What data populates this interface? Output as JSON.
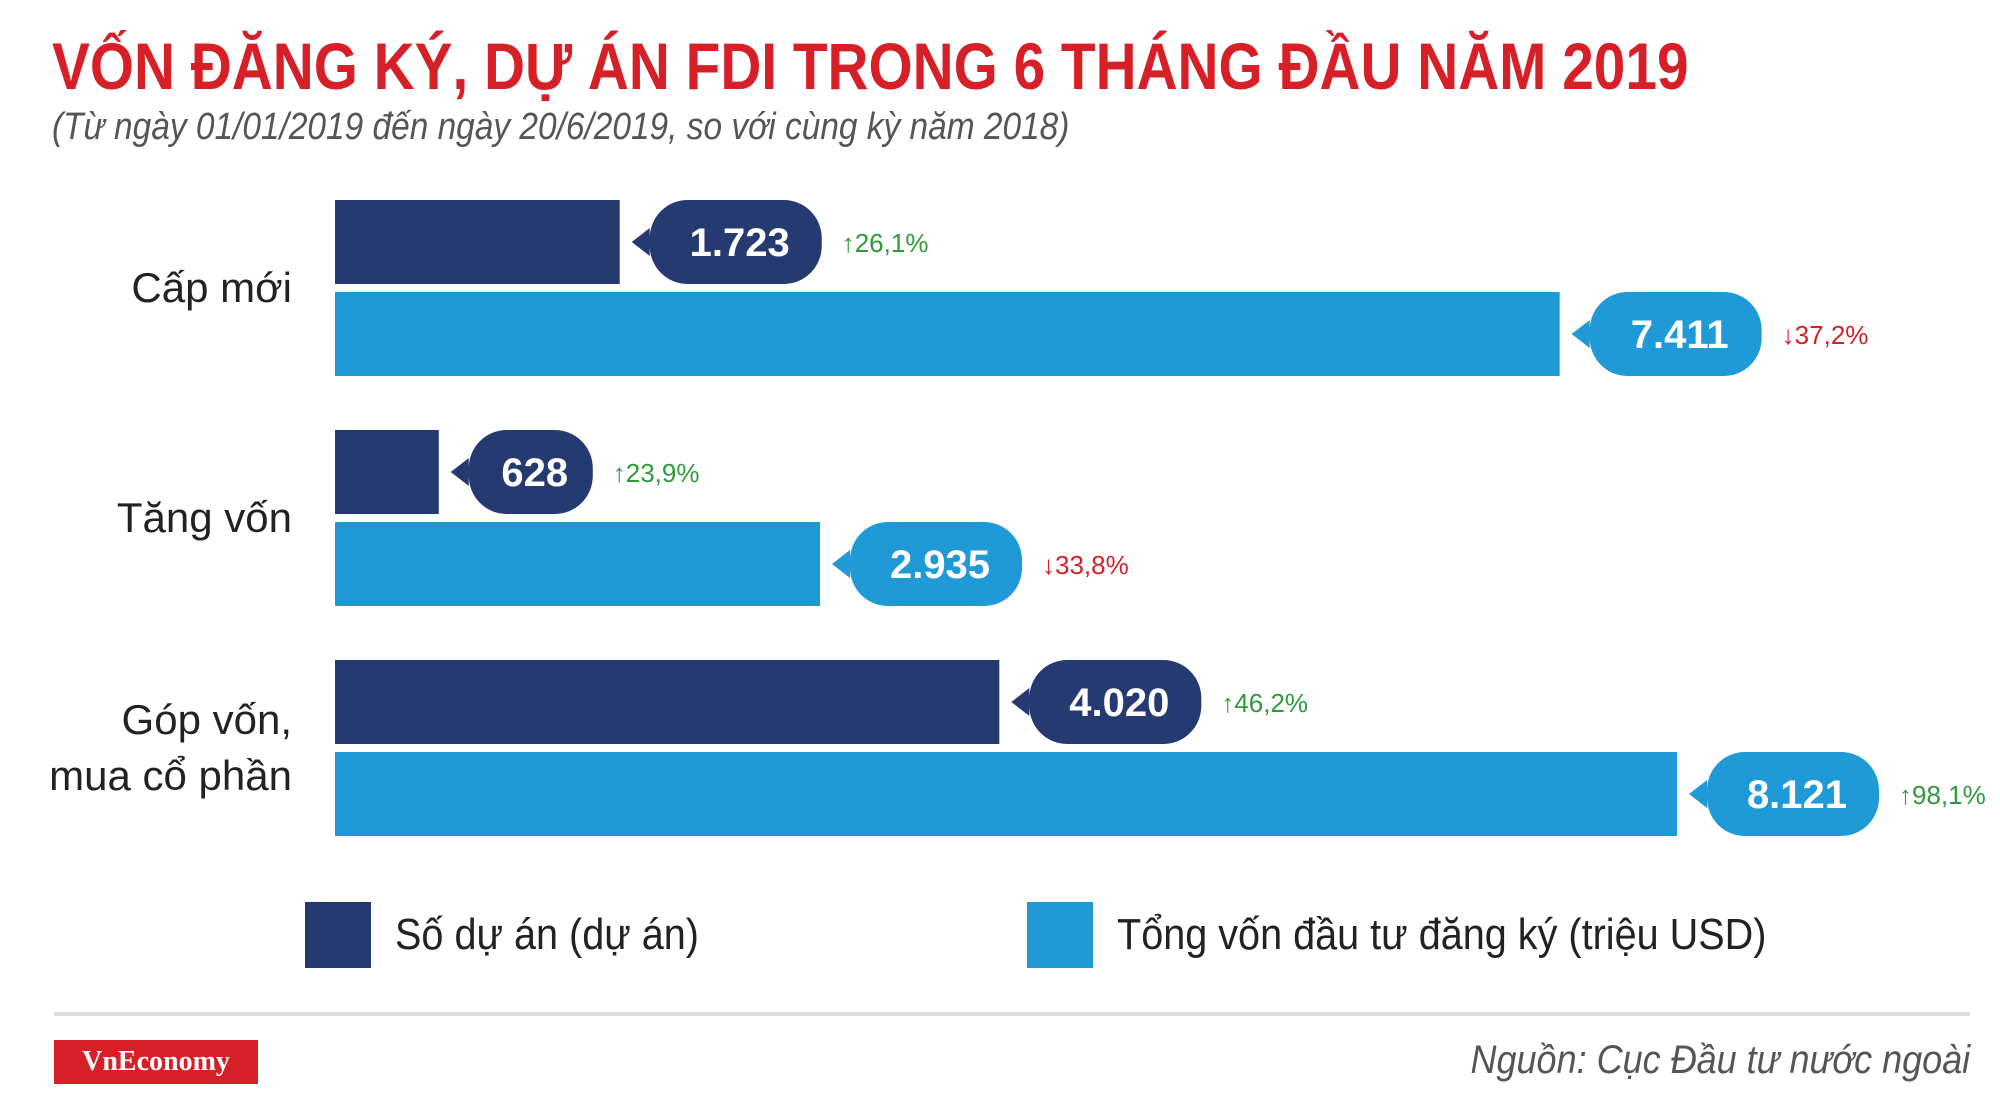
{
  "title": "VỐN ĐĂNG KÝ, DỰ ÁN FDI TRONG 6 THÁNG ĐẦU NĂM 2019",
  "subtitle": "(Từ ngày 01/01/2019 đến ngày 20/6/2019, so với cùng kỳ năm 2018)",
  "colors": {
    "title": "#d71f27",
    "projects": "#253a70",
    "capital": "#1f9ad6",
    "up": "#2e9b3a",
    "down": "#d71f27",
    "logo_bg": "#d71f27"
  },
  "chart_data": {
    "type": "bar",
    "orientation": "horizontal",
    "categories": [
      "Cấp mới",
      "Tăng vốn",
      "Góp vốn,\nmua cổ phần"
    ],
    "series": [
      {
        "name": "Số dự án (dự án)",
        "values": [
          1723,
          628,
          4020
        ],
        "labels": [
          "1.723",
          "628",
          "4.020"
        ],
        "changes": [
          "26,1%",
          "23,9%",
          "46,2%"
        ],
        "change_dirs": [
          "up",
          "up",
          "up"
        ],
        "color": "#253a70"
      },
      {
        "name": "Tổng vốn đầu tư đăng ký (triệu USD)",
        "values": [
          7411,
          2935,
          8121
        ],
        "labels": [
          "7.411",
          "2.935",
          "8.121"
        ],
        "changes": [
          "37,2%",
          "33,8%",
          "98,1%"
        ],
        "change_dirs": [
          "down",
          "down",
          "up"
        ],
        "color": "#1f9ad6"
      }
    ],
    "xlim": [
      0,
      8121
    ],
    "grid": false,
    "legend": "bottom"
  },
  "legend": {
    "projects_label": "Số dự án (dự án)",
    "capital_label": "Tổng vốn đầu tư đăng ký (triệu USD)"
  },
  "footer": {
    "logo": "VnEconomy",
    "source": "Nguồn: Cục Đầu tư nước ngoài"
  }
}
